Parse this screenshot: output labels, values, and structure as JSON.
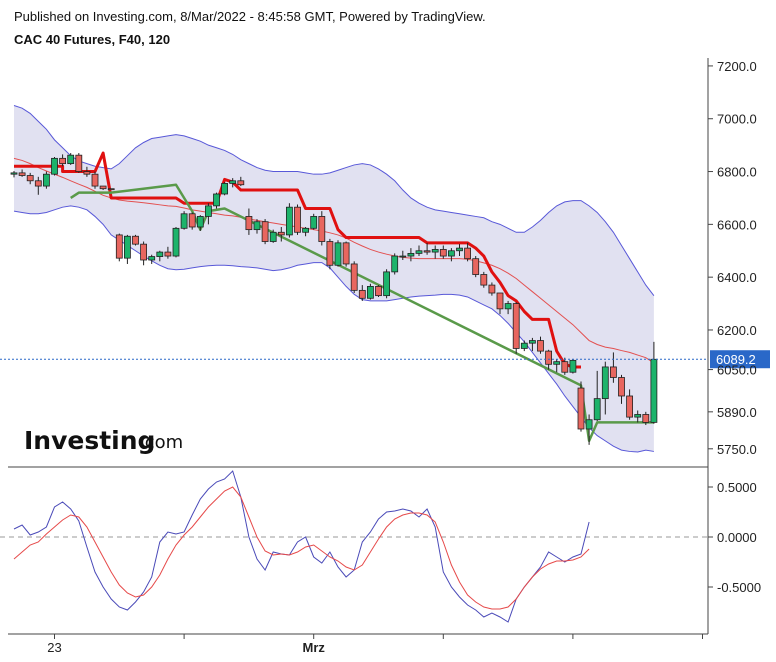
{
  "header": {
    "published": "Published on Investing.com, 8/Mar/2022 - 8:45:58 GMT, Powered by TradingView.",
    "symbol": "CAC 40 Futures, F40, 120"
  },
  "logo": {
    "main": "Investing",
    "suffix": ".com"
  },
  "price_label": "6089.2",
  "colors": {
    "up": "#1db36b",
    "down": "#e8665f",
    "band": "#5858d8",
    "band_fill": "#dcdcee",
    "basis": "#e35050",
    "stop_red": "#e01010",
    "stop_green": "#5a9a4a",
    "osc_fast": "#4a4ab8",
    "osc_slow": "#e64a4a",
    "price_line": "#2a68c8"
  },
  "chart_data": [
    {
      "type": "candlestick",
      "title": "CAC 40 Futures, F40, 120",
      "y_ticks": [
        5750,
        5890,
        6050,
        6200,
        6400,
        6600,
        6800,
        7000,
        7200
      ],
      "y_tick_labels": [
        "5750.0",
        "5890.0",
        "6050.0",
        "6200.0",
        "6400.0",
        "6600.0",
        "6800.0",
        "7000.0",
        "7200.0"
      ],
      "ylim": [
        5700,
        7230
      ],
      "x_labels": [
        {
          "label": "23",
          "index": 5
        },
        {
          "label": "Mrz",
          "index": 37
        }
      ],
      "x_ticks": [
        5,
        21,
        37,
        53,
        69,
        85
      ],
      "last_price": 6089.2,
      "candles": [
        [
          6790,
          6802,
          6778,
          6795
        ],
        [
          6795,
          6808,
          6780,
          6785
        ],
        [
          6785,
          6795,
          6752,
          6765
        ],
        [
          6765,
          6780,
          6712,
          6745
        ],
        [
          6745,
          6800,
          6735,
          6790
        ],
        [
          6790,
          6855,
          6785,
          6850
        ],
        [
          6850,
          6865,
          6820,
          6830
        ],
        [
          6830,
          6870,
          6825,
          6862
        ],
        [
          6862,
          6870,
          6795,
          6800
        ],
        [
          6800,
          6818,
          6780,
          6790
        ],
        [
          6790,
          6800,
          6735,
          6745
        ],
        [
          6745,
          6740,
          6730,
          6735
        ],
        [
          6735,
          6734,
          6732,
          6733
        ],
        [
          6560,
          6565,
          6460,
          6472
        ],
        [
          6472,
          6560,
          6450,
          6555
        ],
        [
          6555,
          6560,
          6520,
          6525
        ],
        [
          6525,
          6535,
          6445,
          6465
        ],
        [
          6465,
          6485,
          6450,
          6478
        ],
        [
          6478,
          6500,
          6460,
          6495
        ],
        [
          6495,
          6515,
          6470,
          6480
        ],
        [
          6480,
          6590,
          6475,
          6585
        ],
        [
          6585,
          6650,
          6580,
          6640
        ],
        [
          6640,
          6645,
          6580,
          6590
        ],
        [
          6590,
          6635,
          6575,
          6630
        ],
        [
          6630,
          6680,
          6600,
          6670
        ],
        [
          6670,
          6720,
          6660,
          6715
        ],
        [
          6715,
          6760,
          6710,
          6755
        ],
        [
          6755,
          6775,
          6740,
          6765
        ],
        [
          6765,
          6780,
          6745,
          6750
        ],
        [
          6630,
          6660,
          6560,
          6580
        ],
        [
          6580,
          6620,
          6565,
          6610
        ],
        [
          6610,
          6620,
          6525,
          6535
        ],
        [
          6535,
          6580,
          6530,
          6570
        ],
        [
          6570,
          6590,
          6535,
          6560
        ],
        [
          6560,
          6680,
          6550,
          6665
        ],
        [
          6665,
          6675,
          6560,
          6570
        ],
        [
          6570,
          6590,
          6555,
          6585
        ],
        [
          6585,
          6640,
          6580,
          6630
        ],
        [
          6630,
          6650,
          6520,
          6535
        ],
        [
          6535,
          6545,
          6430,
          6445
        ],
        [
          6445,
          6540,
          6440,
          6530
        ],
        [
          6530,
          6535,
          6440,
          6450
        ],
        [
          6450,
          6460,
          6340,
          6350
        ],
        [
          6350,
          6370,
          6310,
          6320
        ],
        [
          6320,
          6375,
          6315,
          6365
        ],
        [
          6365,
          6370,
          6325,
          6330
        ],
        [
          6330,
          6430,
          6320,
          6420
        ],
        [
          6420,
          6490,
          6410,
          6480
        ],
        [
          6480,
          6500,
          6465,
          6480
        ],
        [
          6480,
          6510,
          6460,
          6490
        ],
        [
          6490,
          6520,
          6480,
          6500
        ],
        [
          6500,
          6530,
          6485,
          6495
        ],
        [
          6495,
          6520,
          6470,
          6505
        ],
        [
          6505,
          6520,
          6470,
          6480
        ],
        [
          6480,
          6510,
          6460,
          6500
        ],
        [
          6500,
          6525,
          6480,
          6510
        ],
        [
          6510,
          6530,
          6460,
          6470
        ],
        [
          6470,
          6480,
          6400,
          6410
        ],
        [
          6410,
          6420,
          6360,
          6370
        ],
        [
          6370,
          6380,
          6330,
          6340
        ],
        [
          6340,
          6340,
          6260,
          6280
        ],
        [
          6280,
          6310,
          6260,
          6300
        ],
        [
          6300,
          6305,
          6110,
          6130
        ],
        [
          6130,
          6160,
          6120,
          6150
        ],
        [
          6150,
          6170,
          6120,
          6160
        ],
        [
          6160,
          6175,
          6110,
          6120
        ],
        [
          6120,
          6125,
          6050,
          6070
        ],
        [
          6070,
          6090,
          6040,
          6080
        ],
        [
          6080,
          6095,
          6030,
          6040
        ],
        [
          6040,
          6090,
          6035,
          6085
        ],
        [
          5980,
          6005,
          5815,
          5825
        ],
        [
          5825,
          5880,
          5765,
          5860
        ],
        [
          5860,
          6045,
          5855,
          5940
        ],
        [
          5940,
          6080,
          5880,
          6060
        ],
        [
          6060,
          6115,
          6000,
          6020
        ],
        [
          6020,
          6030,
          5920,
          5950
        ],
        [
          5950,
          5975,
          5860,
          5870
        ],
        [
          5870,
          5895,
          5850,
          5880
        ],
        [
          5880,
          5890,
          5840,
          5850
        ],
        [
          5850,
          6155,
          5845,
          6089
        ]
      ],
      "bollinger": {
        "upper": [
          7050,
          7040,
          7020,
          6990,
          6960,
          6920,
          6890,
          6860,
          6840,
          6830,
          6820,
          6815,
          6810,
          6830,
          6860,
          6890,
          6910,
          6925,
          6930,
          6935,
          6940,
          6935,
          6925,
          6915,
          6900,
          6890,
          6880,
          6865,
          6845,
          6830,
          6815,
          6805,
          6800,
          6800,
          6800,
          6800,
          6795,
          6790,
          6790,
          6795,
          6805,
          6815,
          6825,
          6830,
          6825,
          6810,
          6790,
          6765,
          6730,
          6700,
          6680,
          6665,
          6655,
          6650,
          6645,
          6640,
          6635,
          6630,
          6625,
          6610,
          6600,
          6585,
          6570,
          6570,
          6590,
          6615,
          6645,
          6670,
          6685,
          6690,
          6690,
          6670,
          6645,
          6610,
          6570,
          6520,
          6470,
          6420,
          6370,
          6330
        ],
        "lower": [
          6650,
          6645,
          6640,
          6640,
          6645,
          6655,
          6665,
          6670,
          6665,
          6655,
          6630,
          6600,
          6560,
          6540,
          6520,
          6500,
          6480,
          6462,
          6445,
          6432,
          6428,
          6430,
          6435,
          6440,
          6443,
          6445,
          6445,
          6443,
          6440,
          6438,
          6435,
          6430,
          6425,
          6428,
          6435,
          6445,
          6450,
          6455,
          6455,
          6435,
          6400,
          6365,
          6335,
          6315,
          6310,
          6310,
          6310,
          6315,
          6320,
          6325,
          6328,
          6330,
          6332,
          6335,
          6335,
          6332,
          6325,
          6310,
          6295,
          6280,
          6255,
          6225,
          6190,
          6155,
          6115,
          6075,
          6035,
          5995,
          5950,
          5910,
          5870,
          5830,
          5800,
          5780,
          5760,
          5745,
          5740,
          5738,
          5745,
          5740
        ],
        "basis": [
          6850,
          6842,
          6830,
          6815,
          6802,
          6790,
          6778,
          6765,
          6752,
          6740,
          6725,
          6710,
          6700,
          6692,
          6688,
          6685,
          6682,
          6678,
          6674,
          6670,
          6668,
          6662,
          6655,
          6650,
          6645,
          6640,
          6635,
          6632,
          6627,
          6620,
          6615,
          6610,
          6605,
          6600,
          6595,
          6590,
          6585,
          6580,
          6575,
          6568,
          6560,
          6548,
          6532,
          6518,
          6505,
          6495,
          6487,
          6480,
          6475,
          6472,
          6470,
          6470,
          6470,
          6470,
          6470,
          6470,
          6468,
          6462,
          6454,
          6445,
          6432,
          6415,
          6395,
          6370,
          6345,
          6320,
          6295,
          6270,
          6245,
          6220,
          6190,
          6160,
          6145,
          6135,
          6130,
          6122,
          6115,
          6105,
          6095,
          6075
        ]
      },
      "stop_red": [
        [
          0,
          6820
        ],
        [
          6,
          6820
        ],
        [
          6,
          6800
        ],
        [
          10,
          6800
        ],
        [
          11,
          6870
        ],
        [
          12,
          6700
        ],
        [
          20,
          6700
        ],
        [
          21,
          6680
        ],
        [
          25,
          6680
        ],
        [
          26,
          6770
        ],
        [
          27,
          6760
        ],
        [
          28,
          6730
        ],
        [
          35,
          6730
        ],
        [
          36,
          6660
        ],
        [
          39,
          6660
        ],
        [
          40,
          6580
        ],
        [
          41,
          6550
        ],
        [
          50,
          6550
        ],
        [
          51,
          6530
        ],
        [
          56,
          6530
        ],
        [
          57,
          6510
        ],
        [
          58,
          6480
        ],
        [
          59,
          6420
        ],
        [
          60,
          6380
        ],
        [
          61,
          6330
        ],
        [
          62,
          6310
        ],
        [
          63,
          6270
        ],
        [
          64,
          6240
        ],
        [
          66,
          6240
        ],
        [
          67,
          6120
        ],
        [
          68,
          6070
        ],
        [
          69,
          6060
        ],
        [
          70,
          6060
        ]
      ],
      "stop_green": [
        [
          7,
          6700
        ],
        [
          8,
          6720
        ],
        [
          12,
          6720
        ],
        [
          20,
          6750
        ],
        [
          22,
          6650
        ],
        [
          23,
          6580
        ],
        [
          24,
          6650
        ],
        [
          26,
          6660
        ],
        [
          70,
          5990
        ],
        [
          71,
          5780
        ],
        [
          72,
          5850
        ],
        [
          79,
          5850
        ]
      ]
    },
    {
      "type": "line",
      "y_ticks": [
        0.5,
        0.0,
        -0.5
      ],
      "y_tick_labels": [
        "0.5000",
        "0.0000",
        "-0.5000"
      ],
      "ylim": [
        -0.95,
        0.65
      ],
      "zero_line": 0,
      "fast": [
        0.08,
        0.12,
        0.02,
        0.05,
        0.1,
        0.3,
        0.35,
        0.28,
        0.16,
        -0.1,
        -0.35,
        -0.5,
        -0.62,
        -0.7,
        -0.73,
        -0.65,
        -0.55,
        -0.4,
        -0.05,
        0.05,
        0.03,
        0.05,
        0.22,
        0.38,
        0.48,
        0.55,
        0.58,
        0.66,
        0.4,
        0.0,
        -0.22,
        -0.33,
        -0.15,
        -0.17,
        -0.18,
        -0.05,
        0.0,
        -0.2,
        -0.26,
        -0.15,
        -0.3,
        -0.4,
        -0.33,
        -0.05,
        0.05,
        0.18,
        0.25,
        0.26,
        0.28,
        0.26,
        0.2,
        0.28,
        0.1,
        -0.35,
        -0.5,
        -0.6,
        -0.68,
        -0.73,
        -0.8,
        -0.76,
        -0.8,
        -0.85,
        -0.62,
        -0.5,
        -0.4,
        -0.3,
        -0.15,
        -0.2,
        -0.25,
        -0.2,
        -0.17,
        0.15
      ],
      "slow": [
        -0.22,
        -0.15,
        -0.08,
        -0.05,
        0.03,
        0.1,
        0.17,
        0.22,
        0.2,
        0.1,
        -0.05,
        -0.2,
        -0.35,
        -0.48,
        -0.56,
        -0.6,
        -0.58,
        -0.5,
        -0.38,
        -0.22,
        -0.08,
        0.02,
        0.1,
        0.2,
        0.3,
        0.38,
        0.46,
        0.5,
        0.4,
        0.2,
        0.0,
        -0.14,
        -0.18,
        -0.17,
        -0.18,
        -0.15,
        -0.1,
        -0.08,
        -0.14,
        -0.2,
        -0.24,
        -0.3,
        -0.33,
        -0.28,
        -0.15,
        -0.02,
        0.1,
        0.18,
        0.22,
        0.24,
        0.24,
        0.22,
        0.15,
        -0.05,
        -0.28,
        -0.45,
        -0.58,
        -0.65,
        -0.7,
        -0.72,
        -0.72,
        -0.7,
        -0.62,
        -0.5,
        -0.4,
        -0.32,
        -0.27,
        -0.24,
        -0.24,
        -0.23,
        -0.2,
        -0.12
      ]
    }
  ]
}
